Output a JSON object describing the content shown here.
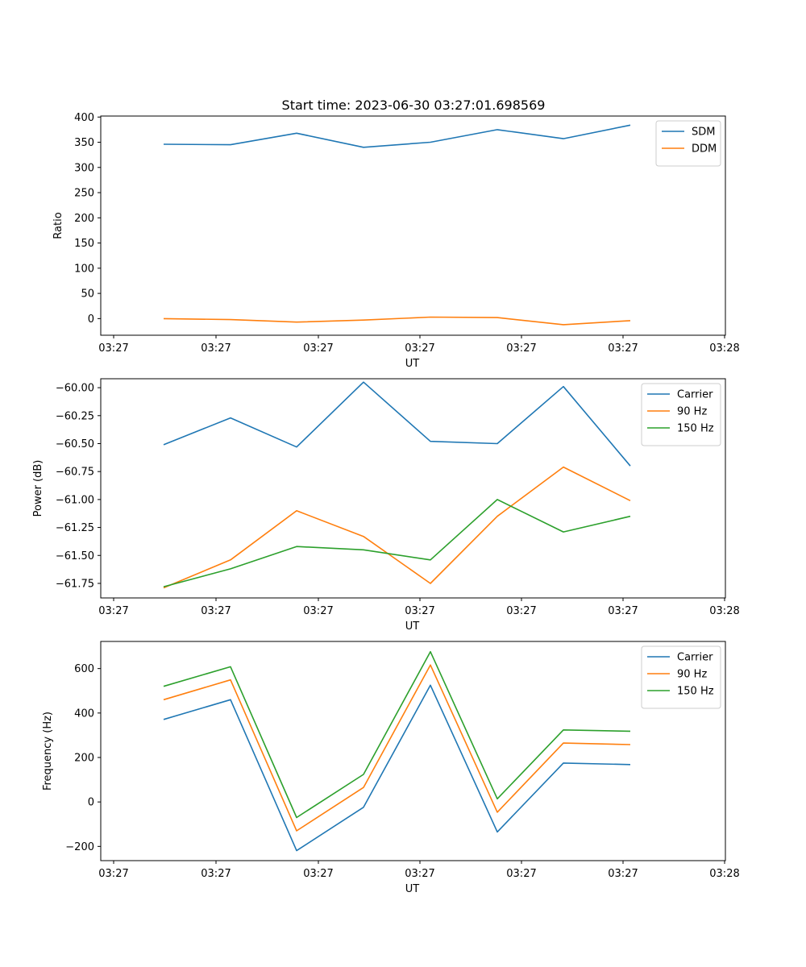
{
  "figure_title": "Start time: 2023-06-30 03:27:01.698569",
  "chart_data": [
    {
      "type": "line",
      "xlabel": "UT",
      "ylabel": "Ratio",
      "x_tick_labels": [
        "03:27",
        "03:27",
        "03:27",
        "03:27",
        "03:27",
        "03:27",
        "03:28"
      ],
      "y_ticks": [
        0,
        50,
        100,
        150,
        200,
        250,
        300,
        350,
        400
      ],
      "y_tick_labels": [
        "0",
        "50",
        "100",
        "150",
        "200",
        "250",
        "300",
        "350",
        "400"
      ],
      "ylim": [
        -33,
        402
      ],
      "legend_position": "top-right",
      "series": [
        {
          "name": "SDM",
          "color": "#1f77b4",
          "values": [
            346,
            345,
            368,
            340,
            350,
            375,
            357,
            384
          ]
        },
        {
          "name": "DDM",
          "color": "#ff7f0e",
          "values": [
            0,
            -2,
            -7,
            -3,
            3,
            2,
            -12,
            -4
          ]
        }
      ]
    },
    {
      "type": "line",
      "xlabel": "UT",
      "ylabel": "Power (dB)",
      "x_tick_labels": [
        "03:27",
        "03:27",
        "03:27",
        "03:27",
        "03:27",
        "03:27",
        "03:28"
      ],
      "y_ticks": [
        -61.75,
        -61.5,
        -61.25,
        -61.0,
        -60.75,
        -60.5,
        -60.25,
        -60.0
      ],
      "y_tick_labels": [
        "−61.75",
        "−61.50",
        "−61.25",
        "−61.00",
        "−60.75",
        "−60.50",
        "−60.25",
        "−60.00"
      ],
      "ylim": [
        -61.88,
        -59.92
      ],
      "legend_position": "top-right",
      "series": [
        {
          "name": "Carrier",
          "color": "#1f77b4",
          "values": [
            -60.51,
            -60.27,
            -60.53,
            -59.95,
            -60.48,
            -60.5,
            -59.99,
            -60.7
          ]
        },
        {
          "name": "90 Hz",
          "color": "#ff7f0e",
          "values": [
            -61.79,
            -61.54,
            -61.1,
            -61.33,
            -61.75,
            -61.15,
            -60.71,
            -61.01
          ]
        },
        {
          "name": "150 Hz",
          "color": "#2ca02c",
          "values": [
            -61.78,
            -61.62,
            -61.42,
            -61.45,
            -61.54,
            -61.0,
            -61.29,
            -61.15
          ]
        }
      ]
    },
    {
      "type": "line",
      "xlabel": "UT",
      "ylabel": "Frequency (Hz)",
      "x_tick_labels": [
        "03:27",
        "03:27",
        "03:27",
        "03:27",
        "03:27",
        "03:27",
        "03:28"
      ],
      "y_ticks": [
        -200,
        0,
        200,
        400,
        600
      ],
      "y_tick_labels": [
        "−200",
        "0",
        "200",
        "400",
        "600"
      ],
      "ylim": [
        -264,
        722
      ],
      "legend_position": "top-right",
      "series": [
        {
          "name": "Carrier",
          "color": "#1f77b4",
          "values": [
            371,
            460,
            -219,
            -24,
            525,
            -135,
            175,
            168
          ]
        },
        {
          "name": "90 Hz",
          "color": "#ff7f0e",
          "values": [
            460,
            549,
            -130,
            65,
            616,
            -46,
            265,
            258
          ]
        },
        {
          "name": "150 Hz",
          "color": "#2ca02c",
          "values": [
            520,
            608,
            -70,
            124,
            676,
            14,
            324,
            318
          ]
        }
      ]
    }
  ]
}
